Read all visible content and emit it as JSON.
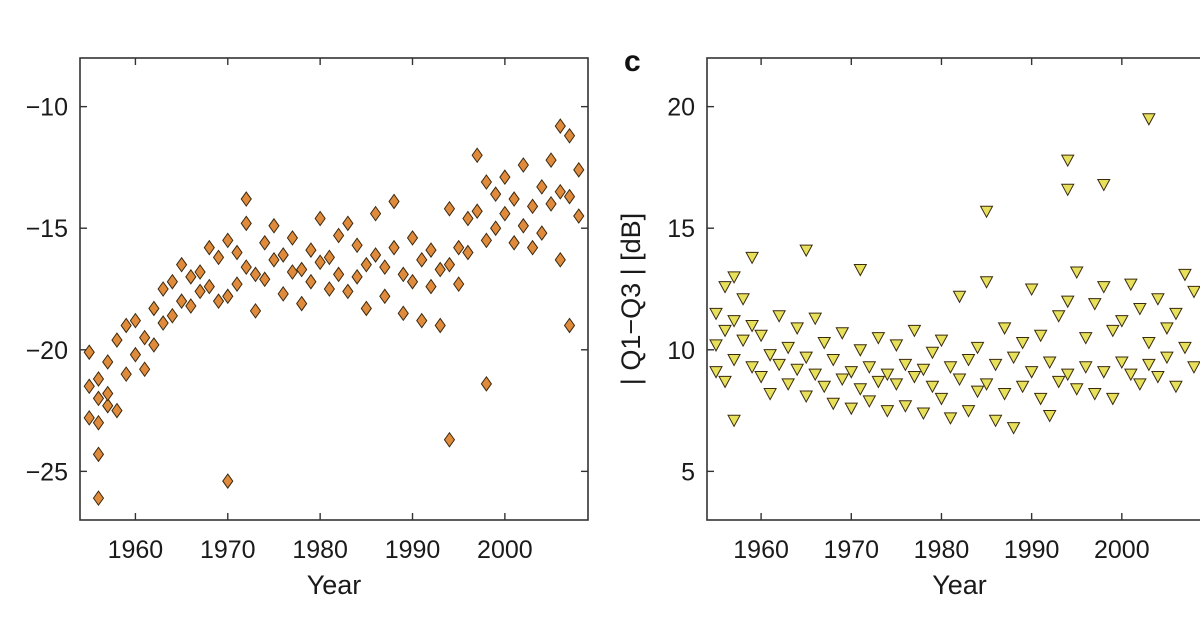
{
  "chart_data": [
    {
      "type": "scatter",
      "panel_label": "",
      "title": "",
      "xlabel": "Year",
      "ylabel": "",
      "xlim": [
        1954,
        2009
      ],
      "ylim": [
        -27,
        -8
      ],
      "xticks": [
        1960,
        1970,
        1980,
        1990,
        2000
      ],
      "yticks": [
        -25,
        -20,
        -15,
        -10
      ],
      "x_tick_labels": [
        "1960",
        "1970",
        "1980",
        "1990",
        "2000"
      ],
      "y_tick_labels": [
        "−25",
        "−20",
        "−15",
        "−10"
      ],
      "grid": false,
      "legend": "none",
      "marker": "diamond",
      "marker_color": "#e08a3c",
      "series": [
        {
          "x": [
            1955,
            1955,
            1955,
            1956,
            1956,
            1956,
            1956,
            1957,
            1957,
            1957,
            1958,
            1958,
            1959,
            1959,
            1960,
            1960,
            1961,
            1961,
            1962,
            1962,
            1963,
            1963,
            1964,
            1964,
            1965,
            1965,
            1966,
            1966,
            1967,
            1967,
            1968,
            1968,
            1969,
            1969,
            1970,
            1970,
            1971,
            1971,
            1972,
            1972,
            1973,
            1973,
            1974,
            1974,
            1975,
            1975,
            1976,
            1976,
            1977,
            1977,
            1978,
            1978,
            1979,
            1979,
            1980,
            1980,
            1981,
            1981,
            1982,
            1982,
            1983,
            1983,
            1984,
            1984,
            1985,
            1985,
            1986,
            1986,
            1987,
            1987,
            1988,
            1988,
            1989,
            1989,
            1990,
            1990,
            1991,
            1991,
            1992,
            1992,
            1993,
            1993,
            1994,
            1994,
            1995,
            1995,
            1996,
            1996,
            1997,
            1997,
            1998,
            1998,
            1999,
            1999,
            2000,
            2000,
            2001,
            2001,
            2002,
            2002,
            2003,
            2003,
            2004,
            2004,
            2005,
            2005,
            2006,
            2006,
            2007,
            2007,
            2008,
            2008,
            1956,
            1970,
            1994,
            1972,
            1998,
            2006,
            2007
          ],
          "y": [
            -21.5,
            -22.8,
            -20.1,
            -22.0,
            -21.2,
            -23.0,
            -24.3,
            -20.5,
            -22.3,
            -21.8,
            -19.6,
            -22.5,
            -19.0,
            -21.0,
            -20.2,
            -18.8,
            -19.5,
            -20.8,
            -18.3,
            -19.8,
            -17.5,
            -18.9,
            -17.2,
            -18.6,
            -16.5,
            -18.0,
            -17.0,
            -18.2,
            -16.8,
            -17.6,
            -15.8,
            -17.4,
            -16.2,
            -18.0,
            -15.5,
            -17.8,
            -16.0,
            -17.3,
            -14.8,
            -16.6,
            -16.9,
            -18.4,
            -15.6,
            -17.1,
            -14.9,
            -16.3,
            -16.1,
            -17.7,
            -15.4,
            -16.8,
            -16.7,
            -18.1,
            -15.9,
            -17.2,
            -14.6,
            -16.4,
            -16.2,
            -17.5,
            -15.3,
            -16.9,
            -14.8,
            -17.6,
            -15.7,
            -17.0,
            -16.5,
            -18.3,
            -14.4,
            -16.1,
            -16.6,
            -17.8,
            -13.9,
            -15.8,
            -16.9,
            -18.5,
            -15.4,
            -17.2,
            -16.3,
            -18.8,
            -15.9,
            -17.4,
            -16.7,
            -19.0,
            -14.2,
            -16.5,
            -15.8,
            -17.3,
            -14.6,
            -16.0,
            -12.0,
            -14.3,
            -13.1,
            -15.5,
            -13.6,
            -15.0,
            -12.9,
            -14.4,
            -13.8,
            -15.6,
            -12.4,
            -14.9,
            -14.1,
            -15.8,
            -13.3,
            -15.2,
            -12.2,
            -14.0,
            -13.5,
            -16.3,
            -11.2,
            -13.7,
            -12.6,
            -14.5,
            -26.1,
            -25.4,
            -23.7,
            -13.8,
            -21.4,
            -10.8,
            -19.0
          ]
        }
      ]
    },
    {
      "type": "scatter",
      "panel_label": "c",
      "title": "",
      "xlabel": "Year",
      "ylabel": "| Q1−Q3 |  [dB]",
      "xlim": [
        1954,
        2010
      ],
      "ylim": [
        3,
        22
      ],
      "xticks": [
        1960,
        1970,
        1980,
        1990,
        2000
      ],
      "yticks": [
        5,
        10,
        15,
        20
      ],
      "x_tick_labels": [
        "1960",
        "1970",
        "1980",
        "1990",
        "2000"
      ],
      "y_tick_labels": [
        "5",
        "10",
        "15",
        "20"
      ],
      "grid": false,
      "legend": "none",
      "marker": "triangle-down",
      "marker_color": "#e6e05a",
      "series": [
        {
          "x": [
            1955,
            1955,
            1955,
            1956,
            1956,
            1956,
            1957,
            1957,
            1957,
            1958,
            1958,
            1959,
            1959,
            1960,
            1960,
            1961,
            1961,
            1962,
            1962,
            1963,
            1963,
            1964,
            1964,
            1965,
            1965,
            1966,
            1966,
            1967,
            1967,
            1968,
            1968,
            1969,
            1969,
            1970,
            1970,
            1971,
            1971,
            1972,
            1972,
            1973,
            1973,
            1974,
            1974,
            1975,
            1975,
            1976,
            1976,
            1977,
            1977,
            1978,
            1978,
            1979,
            1979,
            1980,
            1980,
            1981,
            1981,
            1982,
            1982,
            1983,
            1983,
            1984,
            1984,
            1985,
            1985,
            1986,
            1986,
            1987,
            1987,
            1988,
            1988,
            1989,
            1989,
            1990,
            1990,
            1991,
            1991,
            1992,
            1992,
            1993,
            1993,
            1994,
            1994,
            1995,
            1995,
            1996,
            1996,
            1997,
            1997,
            1998,
            1998,
            1999,
            1999,
            2000,
            2000,
            2001,
            2001,
            2002,
            2002,
            2003,
            2003,
            2004,
            2004,
            2005,
            2005,
            2006,
            2006,
            2007,
            2007,
            2008,
            2008,
            1965,
            1985,
            1994,
            1994,
            1998,
            2003,
            1971,
            1957,
            1959
          ],
          "y": [
            10.2,
            11.5,
            9.1,
            12.6,
            8.7,
            10.8,
            13.0,
            9.6,
            11.2,
            10.4,
            12.1,
            9.3,
            11.0,
            8.9,
            10.6,
            9.8,
            8.2,
            11.4,
            9.4,
            8.6,
            10.1,
            9.2,
            10.9,
            9.7,
            8.1,
            11.3,
            9.0,
            8.5,
            10.3,
            9.6,
            7.8,
            8.8,
            10.7,
            9.1,
            7.6,
            10.0,
            8.4,
            9.3,
            7.9,
            10.5,
            8.7,
            9.0,
            7.5,
            8.6,
            10.2,
            9.4,
            7.7,
            8.9,
            10.8,
            9.2,
            7.4,
            8.5,
            9.9,
            8.0,
            10.4,
            9.3,
            7.2,
            12.2,
            8.8,
            9.6,
            7.5,
            8.3,
            10.1,
            12.8,
            8.6,
            9.4,
            7.1,
            10.9,
            8.2,
            9.7,
            6.8,
            8.5,
            10.3,
            9.1,
            12.5,
            8.0,
            10.6,
            9.5,
            7.3,
            11.4,
            8.7,
            9.0,
            12.0,
            13.2,
            8.4,
            10.5,
            9.3,
            11.9,
            8.2,
            12.6,
            9.1,
            10.8,
            8.0,
            9.5,
            11.2,
            9.0,
            12.7,
            8.6,
            11.7,
            9.4,
            10.3,
            8.9,
            12.1,
            9.7,
            10.9,
            8.5,
            11.5,
            10.1,
            13.1,
            9.3,
            12.4,
            14.1,
            15.7,
            17.8,
            16.6,
            16.8,
            19.5,
            13.3,
            7.1,
            13.8
          ]
        }
      ]
    }
  ]
}
